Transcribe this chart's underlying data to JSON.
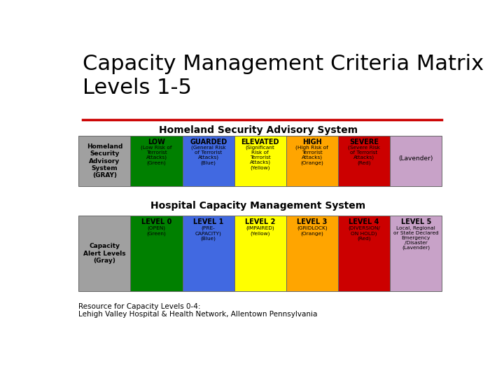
{
  "title_line1": "Capacity Management Criteria Matrix",
  "title_line2": "Levels 1-5",
  "title_fontsize": 22,
  "red_line_color": "#cc0000",
  "bg_color": "#ffffff",
  "hsas_header": "Homeland Security Advisory System",
  "hcms_header": "Hospital Capacity Management System",
  "footer": "Resource for Capacity Levels 0-4:\nLehigh Valley Hospital & Health Network, Allentown Pennsylvania",
  "row1_label": "Homeland\nSecurity\nAdvisory\nSystem\n(GRAY)",
  "row2_label": "Capacity\nAlert Levels\n(Gray)",
  "hsas_cells": [
    {
      "color": "#a0a0a0",
      "label": "",
      "sub": ""
    },
    {
      "color": "#008000",
      "label": "LOW",
      "sub": "(Low Risk of\nTerrorist\nAttacks)\n(Green)"
    },
    {
      "color": "#4169e1",
      "label": "GUARDED",
      "sub": "(General Risk\nof Terrorist\nAttacks)\n(Blue)"
    },
    {
      "color": "#ffff00",
      "label": "ELEVATED",
      "sub": "(Significant\nRisk of\nTerrorist\nAttacks)\n(Yellow)"
    },
    {
      "color": "#ffa500",
      "label": "HIGH",
      "sub": "(High Risk of\nTerrorist\nAttacks)\n(Orange)"
    },
    {
      "color": "#cc0000",
      "label": "SEVERE",
      "sub": "(Severe Risk\nof Terrorist\nAttacks)\n(Red)"
    },
    {
      "color": "#c8a2c8",
      "label": "",
      "sub": "(Lavender)"
    }
  ],
  "hcms_cells": [
    {
      "color": "#a0a0a0",
      "label": "",
      "sub": ""
    },
    {
      "color": "#008000",
      "label": "LEVEL 0",
      "sub": "(OPEN)\n(Green)"
    },
    {
      "color": "#4169e1",
      "label": "LEVEL 1",
      "sub": "(PRE-\nCAPACITY)\n(Blue)"
    },
    {
      "color": "#ffff00",
      "label": "LEVEL 2",
      "sub": "(IMPAIRED)\n(Yellow)"
    },
    {
      "color": "#ffa500",
      "label": "LEVEL 3",
      "sub": "(GRIDLOCK)\n(Orange)"
    },
    {
      "color": "#cc0000",
      "label": "LEVEL 4",
      "sub": "(DIVERSION/\nON HOLD)\n(Red)"
    },
    {
      "color": "#c8a2c8",
      "label": "LEVEL 5",
      "sub": "Local, Regional\nor State Declared\nEmergency\n/Disaster\n(Lavender)"
    }
  ]
}
